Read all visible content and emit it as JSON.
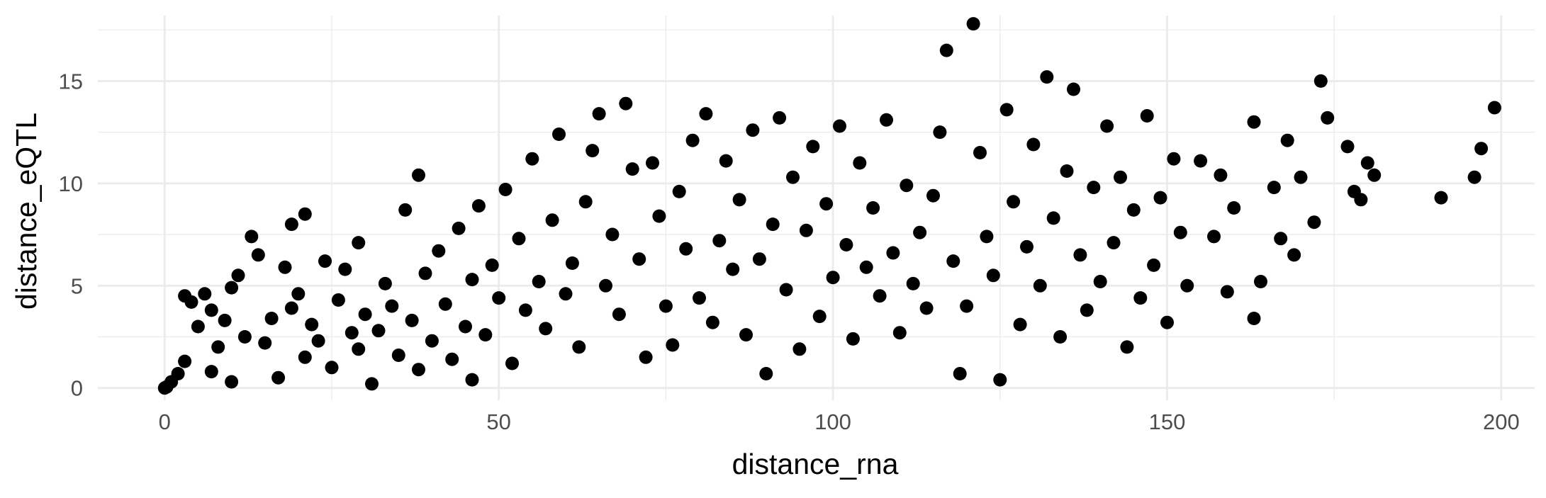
{
  "chart_data": {
    "type": "scatter",
    "title": "",
    "xlabel": "distance_rna",
    "ylabel": "distance_eQTL",
    "xlim": [
      -10,
      205
    ],
    "ylim": [
      -0.6,
      18.2
    ],
    "x_ticks": [
      0,
      50,
      100,
      150,
      200
    ],
    "y_ticks": [
      0,
      5,
      10,
      15
    ],
    "x_tick_labels": [
      "0",
      "50",
      "100",
      "150",
      "200"
    ],
    "y_tick_labels": [
      "0",
      "5",
      "10",
      "15"
    ],
    "grid": true,
    "legend": "none",
    "colors": {
      "point": "#000000",
      "grid": "#ebebeb",
      "tick_text": "#4d4d4d"
    },
    "series": [
      {
        "points": [
          [
            0,
            0
          ],
          [
            0.3,
            0.05
          ],
          [
            1,
            0.3
          ],
          [
            2,
            0.7
          ],
          [
            3,
            1.3
          ],
          [
            3,
            4.5
          ],
          [
            4,
            4.2
          ],
          [
            5,
            3.0
          ],
          [
            6,
            4.6
          ],
          [
            7,
            3.8
          ],
          [
            7,
            0.8
          ],
          [
            8,
            2.0
          ],
          [
            9,
            3.3
          ],
          [
            10,
            0.3
          ],
          [
            10,
            4.9
          ],
          [
            11,
            5.5
          ],
          [
            12,
            2.5
          ],
          [
            13,
            7.4
          ],
          [
            14,
            6.5
          ],
          [
            15,
            2.2
          ],
          [
            16,
            3.4
          ],
          [
            17,
            0.5
          ],
          [
            18,
            5.9
          ],
          [
            19,
            3.9
          ],
          [
            19,
            8.0
          ],
          [
            20,
            4.6
          ],
          [
            21,
            8.5
          ],
          [
            21,
            1.5
          ],
          [
            22,
            3.1
          ],
          [
            23,
            2.3
          ],
          [
            24,
            6.2
          ],
          [
            25,
            1.0
          ],
          [
            26,
            4.3
          ],
          [
            27,
            5.8
          ],
          [
            28,
            2.7
          ],
          [
            29,
            1.9
          ],
          [
            29,
            7.1
          ],
          [
            30,
            3.6
          ],
          [
            31,
            0.2
          ],
          [
            32,
            2.8
          ],
          [
            33,
            5.1
          ],
          [
            34,
            4.0
          ],
          [
            35,
            1.6
          ],
          [
            36,
            8.7
          ],
          [
            37,
            3.3
          ],
          [
            38,
            0.9
          ],
          [
            38,
            10.4
          ],
          [
            39,
            5.6
          ],
          [
            40,
            2.3
          ],
          [
            41,
            6.7
          ],
          [
            42,
            4.1
          ],
          [
            43,
            1.4
          ],
          [
            44,
            7.8
          ],
          [
            45,
            3.0
          ],
          [
            46,
            5.3
          ],
          [
            46,
            0.4
          ],
          [
            47,
            8.9
          ],
          [
            48,
            2.6
          ],
          [
            49,
            6.0
          ],
          [
            50,
            4.4
          ],
          [
            51,
            9.7
          ],
          [
            52,
            1.2
          ],
          [
            53,
            7.3
          ],
          [
            54,
            3.8
          ],
          [
            55,
            11.2
          ],
          [
            56,
            5.2
          ],
          [
            57,
            2.9
          ],
          [
            58,
            8.2
          ],
          [
            59,
            12.4
          ],
          [
            60,
            4.6
          ],
          [
            61,
            6.1
          ],
          [
            62,
            2.0
          ],
          [
            63,
            9.1
          ],
          [
            64,
            11.6
          ],
          [
            65,
            13.4
          ],
          [
            66,
            5.0
          ],
          [
            67,
            7.5
          ],
          [
            68,
            3.6
          ],
          [
            69,
            13.9
          ],
          [
            70,
            10.7
          ],
          [
            71,
            6.3
          ],
          [
            72,
            1.5
          ],
          [
            73,
            11.0
          ],
          [
            74,
            8.4
          ],
          [
            75,
            4.0
          ],
          [
            76,
            2.1
          ],
          [
            77,
            9.6
          ],
          [
            78,
            6.8
          ],
          [
            79,
            12.1
          ],
          [
            80,
            4.4
          ],
          [
            81,
            13.4
          ],
          [
            82,
            3.2
          ],
          [
            83,
            7.2
          ],
          [
            84,
            11.1
          ],
          [
            85,
            5.8
          ],
          [
            86,
            9.2
          ],
          [
            87,
            2.6
          ],
          [
            88,
            12.6
          ],
          [
            89,
            6.3
          ],
          [
            90,
            0.7
          ],
          [
            91,
            8.0
          ],
          [
            92,
            13.2
          ],
          [
            93,
            4.8
          ],
          [
            94,
            10.3
          ],
          [
            95,
            1.9
          ],
          [
            96,
            7.7
          ],
          [
            97,
            11.8
          ],
          [
            98,
            3.5
          ],
          [
            99,
            9.0
          ],
          [
            100,
            5.4
          ],
          [
            101,
            12.8
          ],
          [
            102,
            7.0
          ],
          [
            103,
            2.4
          ],
          [
            104,
            11.0
          ],
          [
            105,
            5.9
          ],
          [
            106,
            8.8
          ],
          [
            107,
            4.5
          ],
          [
            108,
            13.1
          ],
          [
            109,
            6.6
          ],
          [
            110,
            2.7
          ],
          [
            111,
            9.9
          ],
          [
            112,
            5.1
          ],
          [
            113,
            7.6
          ],
          [
            114,
            3.9
          ],
          [
            115,
            9.4
          ],
          [
            116,
            12.5
          ],
          [
            117,
            16.5
          ],
          [
            118,
            6.2
          ],
          [
            119,
            0.7
          ],
          [
            120,
            4.0
          ],
          [
            121,
            17.8
          ],
          [
            122,
            11.5
          ],
          [
            123,
            7.4
          ],
          [
            124,
            5.5
          ],
          [
            125,
            0.4
          ],
          [
            126,
            13.6
          ],
          [
            127,
            9.1
          ],
          [
            128,
            3.1
          ],
          [
            129,
            6.9
          ],
          [
            130,
            11.9
          ],
          [
            131,
            5.0
          ],
          [
            132,
            15.2
          ],
          [
            133,
            8.3
          ],
          [
            134,
            2.5
          ],
          [
            135,
            10.6
          ],
          [
            136,
            14.6
          ],
          [
            137,
            6.5
          ],
          [
            138,
            3.8
          ],
          [
            139,
            9.8
          ],
          [
            140,
            5.2
          ],
          [
            141,
            12.8
          ],
          [
            142,
            7.1
          ],
          [
            143,
            10.3
          ],
          [
            144,
            2.0
          ],
          [
            145,
            8.7
          ],
          [
            146,
            4.4
          ],
          [
            147,
            13.3
          ],
          [
            148,
            6.0
          ],
          [
            149,
            9.3
          ],
          [
            150,
            3.2
          ],
          [
            151,
            11.2
          ],
          [
            152,
            7.6
          ],
          [
            153,
            5.0
          ],
          [
            155,
            11.1
          ],
          [
            157,
            7.4
          ],
          [
            158,
            10.4
          ],
          [
            159,
            4.7
          ],
          [
            160,
            8.8
          ],
          [
            163,
            13.0
          ],
          [
            163,
            3.4
          ],
          [
            164,
            5.2
          ],
          [
            166,
            9.8
          ],
          [
            167,
            7.3
          ],
          [
            168,
            12.1
          ],
          [
            169,
            6.5
          ],
          [
            170,
            10.3
          ],
          [
            172,
            8.1
          ],
          [
            173,
            15.0
          ],
          [
            174,
            13.2
          ],
          [
            177,
            11.8
          ],
          [
            178,
            9.6
          ],
          [
            179,
            9.2
          ],
          [
            180,
            11.0
          ],
          [
            181,
            10.4
          ],
          [
            191,
            9.3
          ],
          [
            196,
            10.3
          ],
          [
            197,
            11.7
          ],
          [
            199,
            13.7
          ]
        ]
      }
    ]
  }
}
